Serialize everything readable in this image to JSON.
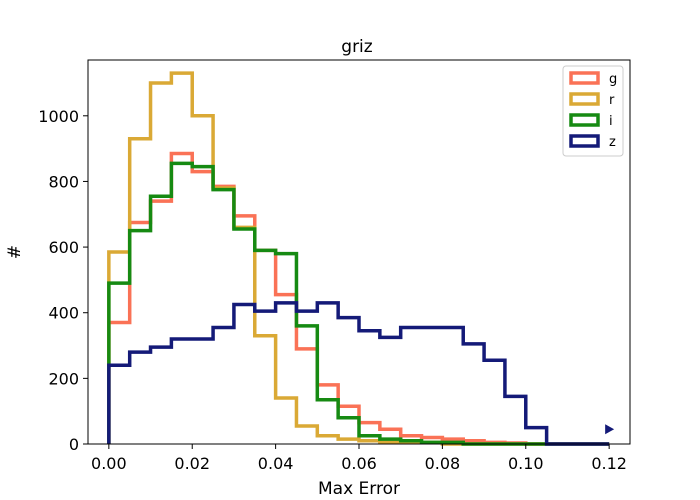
{
  "chart_data": {
    "type": "histogram",
    "title": "griz",
    "xlabel": "Max Error",
    "ylabel": "#",
    "xlim": [
      -0.005,
      0.125
    ],
    "ylim": [
      0,
      1170
    ],
    "xticks": [
      "0.00",
      "0.02",
      "0.04",
      "0.06",
      "0.08",
      "0.10",
      "0.12"
    ],
    "yticks": [
      "0",
      "200",
      "400",
      "600",
      "800",
      "1000"
    ],
    "grid": false,
    "legend_position": "upper-right",
    "bin_edges": [
      0.0,
      0.005,
      0.01,
      0.015,
      0.02,
      0.025,
      0.03,
      0.035,
      0.04,
      0.045,
      0.05,
      0.055,
      0.06,
      0.065,
      0.07,
      0.075,
      0.08,
      0.085,
      0.09,
      0.095,
      0.1,
      0.105,
      0.11,
      0.115,
      0.12
    ],
    "series": [
      {
        "name": "g",
        "color": "#fa7256",
        "values": [
          370,
          675,
          740,
          885,
          830,
          785,
          695,
          590,
          455,
          290,
          180,
          115,
          65,
          45,
          25,
          20,
          15,
          10,
          5,
          3,
          0,
          0,
          0,
          0
        ]
      },
      {
        "name": "r",
        "color": "#daa935",
        "values": [
          585,
          930,
          1100,
          1130,
          1000,
          780,
          660,
          330,
          140,
          55,
          25,
          15,
          10,
          5,
          5,
          5,
          0,
          0,
          0,
          0,
          0,
          0,
          0,
          0
        ]
      },
      {
        "name": "i",
        "color": "#168a12",
        "values": [
          490,
          650,
          755,
          855,
          845,
          775,
          655,
          590,
          580,
          360,
          135,
          80,
          25,
          15,
          10,
          5,
          5,
          0,
          0,
          0,
          0,
          0,
          0,
          0
        ]
      },
      {
        "name": "z",
        "color": "#141a78",
        "values": [
          240,
          280,
          295,
          320,
          320,
          355,
          425,
          405,
          430,
          405,
          430,
          385,
          345,
          325,
          355,
          355,
          355,
          305,
          255,
          145,
          50,
          0,
          0,
          0
        ]
      }
    ],
    "overflow_marker": {
      "series": "z",
      "x": 0.12,
      "value": 45
    }
  }
}
